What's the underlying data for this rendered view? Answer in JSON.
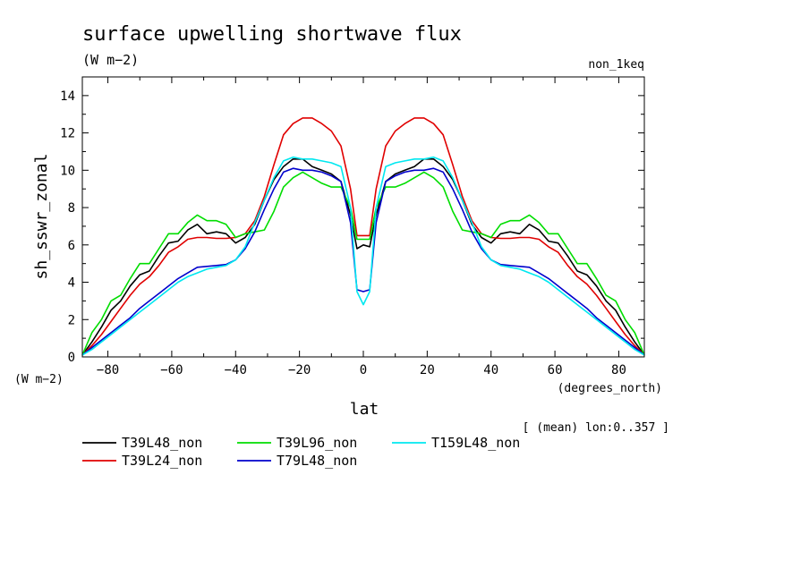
{
  "chart_data": {
    "type": "line",
    "title": "surface upwelling shortwave flux",
    "units": "(W m−2)",
    "experiment": "non_1keq",
    "ylabel": "sh_sswr_zonal",
    "yunits": "(W m−2)",
    "xlabel": "lat",
    "xunits": "(degrees_north)",
    "footnote": "[ (mean) lon:0..357 ]",
    "xlim": [
      -88,
      88
    ],
    "ylim": [
      0,
      15
    ],
    "xticks": [
      -80,
      -60,
      -40,
      -20,
      0,
      20,
      40,
      60,
      80
    ],
    "xtick_labels": [
      "−80",
      "−60",
      "−40",
      "−20",
      "0",
      "20",
      "40",
      "60",
      "80"
    ],
    "yticks": [
      0,
      2,
      4,
      6,
      8,
      10,
      12,
      14
    ],
    "ytick_labels": [
      "0",
      "2",
      "4",
      "6",
      "8",
      "10",
      "12",
      "14"
    ],
    "x": [
      -88,
      -85,
      -82,
      -79,
      -76,
      -73,
      -70,
      -67,
      -64,
      -61,
      -58,
      -55,
      -52,
      -49,
      -46,
      -43,
      -40,
      -37,
      -34,
      -31,
      -28,
      -25,
      -22,
      -19,
      -16,
      -13,
      -10,
      -7,
      -4,
      -2,
      0,
      2,
      4,
      7,
      10,
      13,
      16,
      19,
      22,
      25,
      28,
      31,
      34,
      37,
      40,
      43,
      46,
      49,
      52,
      55,
      58,
      61,
      64,
      67,
      70,
      73,
      76,
      79,
      82,
      85,
      88
    ],
    "series": [
      {
        "name": "T39L48_non",
        "color": "#000000",
        "values": [
          0.1,
          0.8,
          1.6,
          2.5,
          3.0,
          3.8,
          4.4,
          4.6,
          5.4,
          6.1,
          6.2,
          6.8,
          7.1,
          6.6,
          6.7,
          6.6,
          6.1,
          6.4,
          7.1,
          8.4,
          9.5,
          10.2,
          10.6,
          10.6,
          10.2,
          10.0,
          9.8,
          9.4,
          7.6,
          5.8,
          6.0,
          5.9,
          7.6,
          9.4,
          9.8,
          10.0,
          10.2,
          10.6,
          10.6,
          10.2,
          9.5,
          8.4,
          7.1,
          6.4,
          6.1,
          6.6,
          6.7,
          6.6,
          7.1,
          6.8,
          6.2,
          6.1,
          5.4,
          4.6,
          4.4,
          3.8,
          3.0,
          2.5,
          1.6,
          0.8,
          0.1
        ]
      },
      {
        "name": "T39L24_non",
        "color": "#e00000",
        "values": [
          0.1,
          0.6,
          1.2,
          1.9,
          2.6,
          3.3,
          3.9,
          4.3,
          4.9,
          5.6,
          5.9,
          6.3,
          6.4,
          6.4,
          6.35,
          6.35,
          6.4,
          6.6,
          7.3,
          8.6,
          10.3,
          11.9,
          12.5,
          12.8,
          12.8,
          12.5,
          12.1,
          11.3,
          9.0,
          6.5,
          6.5,
          6.5,
          9.0,
          11.3,
          12.1,
          12.5,
          12.8,
          12.8,
          12.5,
          11.9,
          10.3,
          8.6,
          7.3,
          6.6,
          6.4,
          6.35,
          6.35,
          6.4,
          6.4,
          6.3,
          5.9,
          5.6,
          4.9,
          4.3,
          3.9,
          3.3,
          2.6,
          1.9,
          1.2,
          0.6,
          0.1
        ]
      },
      {
        "name": "T39L96_non",
        "color": "#00dd00",
        "values": [
          0.1,
          1.3,
          2.0,
          3.0,
          3.3,
          4.2,
          5.0,
          5.0,
          5.8,
          6.6,
          6.6,
          7.2,
          7.6,
          7.3,
          7.3,
          7.1,
          6.4,
          6.6,
          6.7,
          6.8,
          7.8,
          9.1,
          9.6,
          9.9,
          9.6,
          9.3,
          9.1,
          9.1,
          8.0,
          6.3,
          6.3,
          6.3,
          8.0,
          9.1,
          9.1,
          9.3,
          9.6,
          9.9,
          9.6,
          9.1,
          7.8,
          6.8,
          6.7,
          6.6,
          6.4,
          7.1,
          7.3,
          7.3,
          7.6,
          7.2,
          6.6,
          6.6,
          5.8,
          5.0,
          5.0,
          4.2,
          3.3,
          3.0,
          2.0,
          1.3,
          0.1
        ]
      },
      {
        "name": "T79L48_non",
        "color": "#0000cc",
        "values": [
          0.1,
          0.5,
          0.9,
          1.3,
          1.7,
          2.1,
          2.6,
          3.0,
          3.4,
          3.8,
          4.2,
          4.5,
          4.8,
          4.85,
          4.9,
          4.95,
          5.2,
          5.8,
          6.7,
          7.9,
          9.0,
          9.9,
          10.1,
          10.0,
          10.0,
          9.9,
          9.7,
          9.4,
          7.2,
          3.6,
          3.5,
          3.6,
          7.2,
          9.4,
          9.7,
          9.9,
          10.0,
          10.0,
          10.1,
          9.9,
          9.0,
          7.9,
          6.7,
          5.8,
          5.2,
          4.95,
          4.9,
          4.85,
          4.8,
          4.5,
          4.2,
          3.8,
          3.4,
          3.0,
          2.6,
          2.1,
          1.7,
          1.3,
          0.9,
          0.5,
          0.1
        ]
      },
      {
        "name": "T159L48_non",
        "color": "#00e8f0",
        "values": [
          0.1,
          0.4,
          0.8,
          1.2,
          1.6,
          2.0,
          2.4,
          2.8,
          3.2,
          3.6,
          4.0,
          4.3,
          4.5,
          4.7,
          4.8,
          4.9,
          5.2,
          5.9,
          7.2,
          8.4,
          9.6,
          10.5,
          10.7,
          10.6,
          10.6,
          10.5,
          10.4,
          10.2,
          8.0,
          3.5,
          2.8,
          3.5,
          8.0,
          10.2,
          10.4,
          10.5,
          10.6,
          10.6,
          10.7,
          10.5,
          9.6,
          8.4,
          7.2,
          5.9,
          5.2,
          4.9,
          4.8,
          4.7,
          4.5,
          4.3,
          4.0,
          3.6,
          3.2,
          2.8,
          2.4,
          2.0,
          1.6,
          1.2,
          0.8,
          0.4,
          0.1
        ]
      }
    ],
    "legend": {
      "placement": "bottom",
      "entries": [
        "T39L48_non",
        "T39L96_non",
        "T159L48_non",
        "T39L24_non",
        "T79L48_non"
      ]
    },
    "grid": false
  }
}
